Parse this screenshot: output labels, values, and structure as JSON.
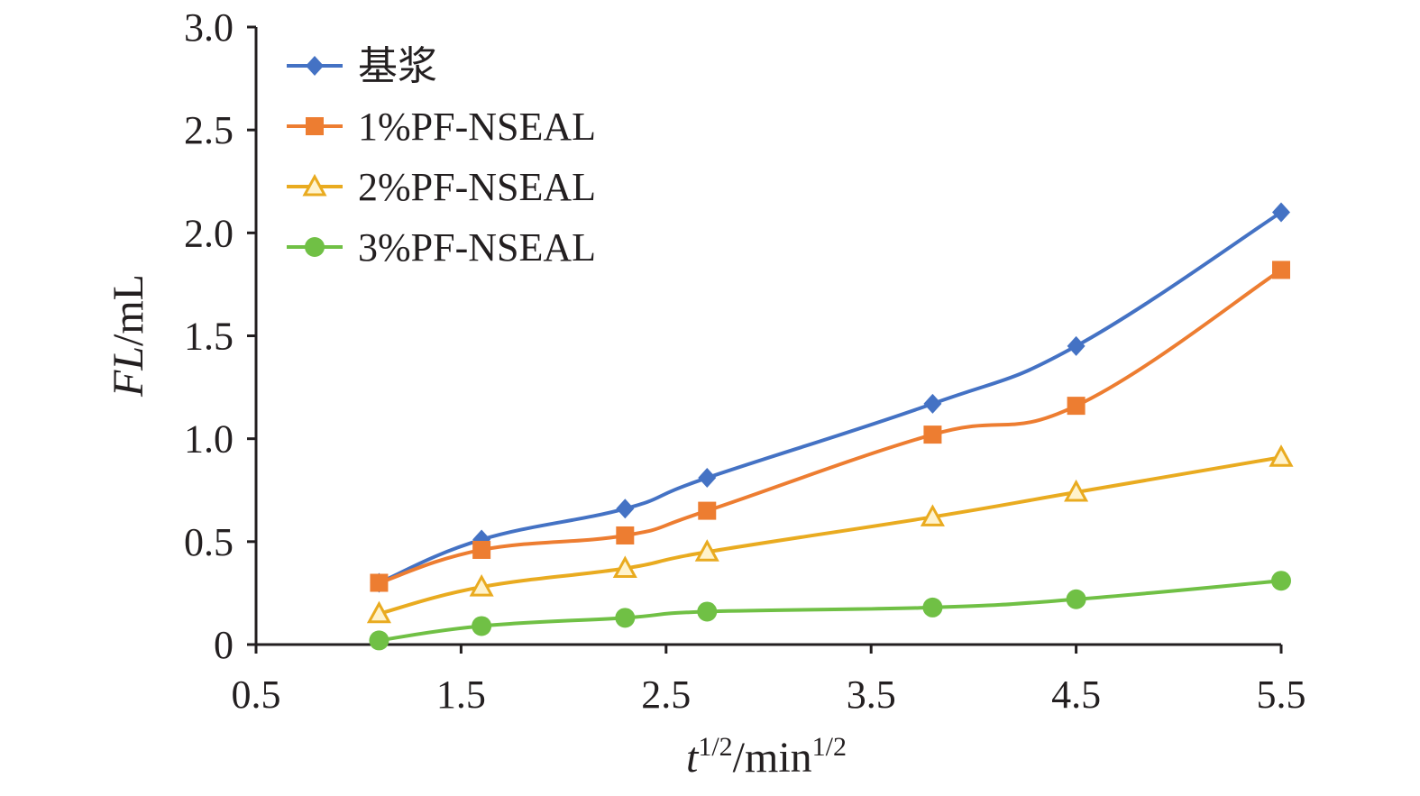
{
  "chart_data": {
    "type": "line",
    "xlabel": {
      "var": "t",
      "sup": "1/2",
      "unit": "/min",
      "unit_sup": "1/2"
    },
    "ylabel": {
      "var": "FL",
      "unit": "/mL"
    },
    "xlim": [
      0.5,
      5.5
    ],
    "ylim": [
      0,
      3.0
    ],
    "xticks": [
      "0.5",
      "1.5",
      "2.5",
      "3.5",
      "4.5",
      "5.5"
    ],
    "yticks": [
      "0",
      "0.5",
      "1.0",
      "1.5",
      "2.0",
      "2.5",
      "3.0"
    ],
    "grid": false,
    "legend_position": "top-left",
    "x": [
      1.1,
      1.6,
      2.3,
      2.7,
      3.8,
      4.5,
      5.5
    ],
    "series": [
      {
        "name": "基浆",
        "marker": "diamond",
        "color": "#4472c4",
        "values": [
          0.3,
          0.51,
          0.66,
          0.81,
          1.17,
          1.45,
          2.1
        ]
      },
      {
        "name": "1%PF-NSEAL",
        "marker": "square",
        "color": "#ed7d31",
        "values": [
          0.3,
          0.46,
          0.53,
          0.65,
          1.02,
          1.16,
          1.82
        ]
      },
      {
        "name": "2%PF-NSEAL",
        "marker": "triangle",
        "color": "#e9ab20",
        "values": [
          0.15,
          0.28,
          0.37,
          0.45,
          0.62,
          0.74,
          0.91
        ]
      },
      {
        "name": "3%PF-NSEAL",
        "marker": "circle",
        "color": "#70c045",
        "values": [
          0.02,
          0.09,
          0.13,
          0.16,
          0.18,
          0.22,
          0.31
        ]
      }
    ]
  }
}
